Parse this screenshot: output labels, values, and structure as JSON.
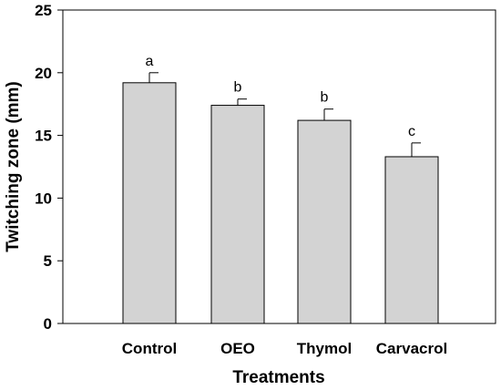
{
  "chart_data": {
    "type": "bar",
    "title": "",
    "xlabel": "Treatments",
    "ylabel": "Twitching zone (mm)",
    "categories": [
      "Control",
      "OEO",
      "Thymol",
      "Carvacrol"
    ],
    "values": [
      19.2,
      17.4,
      16.2,
      13.3
    ],
    "errors": [
      0.8,
      0.5,
      0.9,
      1.1
    ],
    "letters": [
      "a",
      "b",
      "b",
      "c"
    ],
    "ylim": [
      0,
      25
    ],
    "yticks": [
      0,
      5,
      10,
      15,
      20,
      25
    ],
    "ytick_labels": [
      "0",
      "5",
      "10",
      "15",
      "20",
      "25"
    ],
    "grid": false,
    "legend": "none",
    "colors": {
      "bar_fill": "#d3d3d3",
      "bar_stroke": "#000000",
      "axis": "#000000",
      "background": "#ffffff"
    }
  }
}
